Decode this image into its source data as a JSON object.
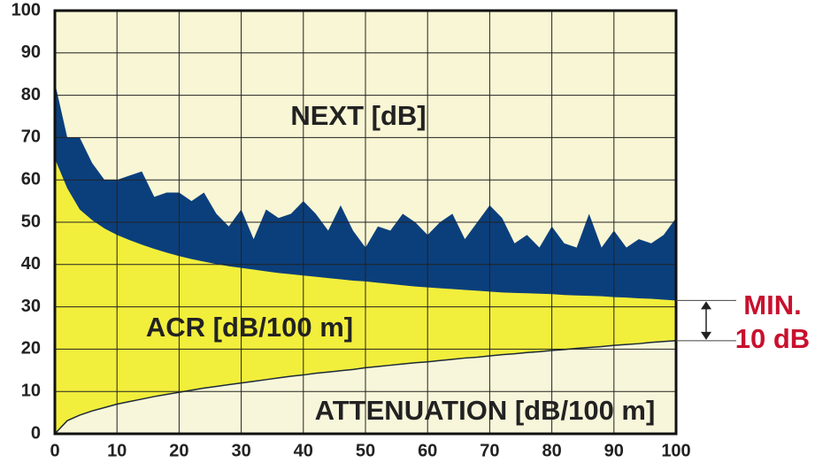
{
  "chart_data": {
    "type": "area",
    "x": [
      0,
      2,
      4,
      6,
      8,
      10,
      12,
      14,
      16,
      18,
      20,
      22,
      24,
      26,
      28,
      30,
      32,
      34,
      36,
      38,
      40,
      42,
      44,
      46,
      48,
      50,
      52,
      54,
      56,
      58,
      60,
      62,
      64,
      66,
      68,
      70,
      72,
      74,
      76,
      78,
      80,
      82,
      84,
      86,
      88,
      90,
      92,
      94,
      96,
      98,
      100
    ],
    "series": [
      {
        "name": "NEXT [dB]",
        "color": "#0b3f7c",
        "values": [
          83,
          70,
          70,
          64,
          60,
          60,
          61,
          62,
          56,
          57,
          57,
          55,
          57,
          52,
          49,
          53,
          46,
          53,
          51,
          52,
          55,
          52,
          48,
          54,
          48,
          44,
          49,
          48,
          52,
          50,
          47,
          50,
          52,
          46,
          50,
          54,
          51,
          45,
          47,
          44,
          49,
          45,
          44,
          52,
          44,
          48,
          44,
          46,
          45,
          47,
          51
        ]
      },
      {
        "name": "ACR [dB/100 m]",
        "color": "#f2ee3c",
        "values": [
          65,
          58,
          53,
          50.5,
          48.5,
          47,
          45.8,
          44.7,
          43.7,
          42.8,
          42,
          41.3,
          40.7,
          40.1,
          39.6,
          39.2,
          38.8,
          38.4,
          38,
          37.7,
          37.4,
          37.1,
          36.8,
          36.5,
          36.2,
          36,
          35.7,
          35.4,
          35.1,
          34.8,
          34.6,
          34.4,
          34.2,
          34,
          33.8,
          33.6,
          33.4,
          33.3,
          33.2,
          33.1,
          33,
          32.8,
          32.7,
          32.6,
          32.5,
          32.3,
          32.2,
          32,
          31.9,
          31.7,
          31.5
        ]
      },
      {
        "name": "ATTENUATION [dB/100 m]",
        "color": "#f8f6da",
        "values": [
          0,
          3.1,
          4.4,
          5.4,
          6.2,
          7,
          7.6,
          8.2,
          8.8,
          9.3,
          9.8,
          10.3,
          10.8,
          11.2,
          11.6,
          12,
          12.4,
          12.8,
          13.2,
          13.6,
          13.9,
          14.3,
          14.6,
          14.9,
          15.2,
          15.6,
          15.9,
          16.2,
          16.5,
          16.8,
          17,
          17.3,
          17.6,
          17.9,
          18.1,
          18.4,
          18.7,
          18.9,
          19.2,
          19.4,
          19.7,
          19.9,
          20.2,
          20.4,
          20.6,
          20.9,
          21.1,
          21.3,
          21.6,
          21.8,
          22
        ]
      }
    ],
    "annotation": [
      "MIN.",
      "10 dB"
    ],
    "annotation_color": "#c8102e",
    "background": "#f8f6d4",
    "xlim": [
      0,
      100
    ],
    "ylim": [
      0,
      100
    ],
    "xticks": [
      0,
      10,
      20,
      30,
      40,
      50,
      60,
      70,
      80,
      90,
      100
    ],
    "yticks": [
      0,
      10,
      20,
      30,
      40,
      50,
      60,
      70,
      80,
      90,
      100
    ],
    "grid": true
  }
}
